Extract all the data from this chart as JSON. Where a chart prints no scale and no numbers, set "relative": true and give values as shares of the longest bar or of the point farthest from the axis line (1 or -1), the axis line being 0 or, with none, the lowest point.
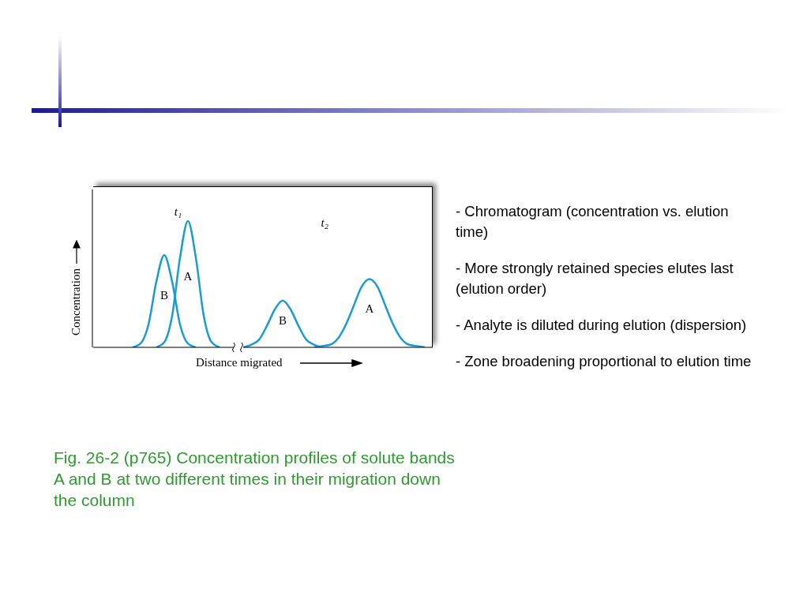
{
  "chart_data": {
    "type": "line",
    "relative": true,
    "xlabel": "Distance migrated",
    "ylabel": "Concentration",
    "categories": [
      null,
      null,
      null,
      null,
      null,
      null,
      null,
      null,
      null,
      null,
      null,
      null,
      null,
      null,
      null,
      null,
      null,
      null,
      null,
      null,
      null,
      null,
      null,
      null,
      null,
      null,
      null,
      null,
      null,
      null,
      null,
      null,
      null,
      null,
      null,
      null,
      null,
      null,
      null,
      null,
      null,
      null,
      null,
      null
    ],
    "series": [
      {
        "name": "B",
        "color": "#1a9ad6",
        "values": [
          null,
          null,
          null,
          null,
          null,
          0,
          0.03,
          0.18,
          0.52,
          0.73,
          0.52,
          0.18,
          0.03,
          0,
          null,
          null,
          null,
          null,
          null,
          null,
          null,
          null,
          null,
          null,
          null,
          null,
          null,
          null,
          null,
          null,
          null,
          null,
          null,
          null,
          null,
          null,
          null,
          null,
          null,
          null,
          null,
          null,
          null,
          null
        ]
      },
      {
        "name": "A",
        "color": "#1a9ad6",
        "values": [
          null,
          null,
          null,
          null,
          null,
          null,
          null,
          null,
          0,
          0.04,
          0.25,
          0.71,
          1,
          0.71,
          0.25,
          0.04,
          0,
          null,
          null,
          null,
          null,
          null,
          null,
          null,
          null,
          null,
          null,
          null,
          null,
          null,
          null,
          null,
          null,
          null,
          null,
          null,
          null,
          null,
          null,
          null,
          null,
          null,
          null,
          null
        ]
      },
      {
        "name": "B",
        "color": "#1a9ad6",
        "values": [
          null,
          null,
          null,
          null,
          null,
          null,
          null,
          null,
          null,
          null,
          null,
          null,
          null,
          null,
          null,
          null,
          null,
          null,
          null,
          0,
          0.02,
          0.06,
          0.17,
          0.3,
          0.37,
          0.3,
          0.17,
          0.06,
          0.02,
          0,
          null,
          null,
          null,
          null,
          null,
          null,
          null,
          null,
          null,
          null,
          null,
          null,
          null,
          null
        ]
      },
      {
        "name": "A",
        "color": "#1a9ad6",
        "values": [
          null,
          null,
          null,
          null,
          null,
          null,
          null,
          null,
          null,
          null,
          null,
          null,
          null,
          null,
          null,
          null,
          null,
          null,
          null,
          null,
          null,
          null,
          null,
          null,
          null,
          null,
          null,
          null,
          0,
          0.01,
          0.02,
          0.07,
          0.18,
          0.33,
          0.48,
          0.54,
          0.48,
          0.33,
          0.18,
          0.07,
          0.02,
          0.01,
          0,
          null
        ]
      }
    ],
    "annotations": [
      "t₁",
      "t₂",
      "- Chromatogram (concentration vs. elution time)",
      "- More strongly retained species elutes last (elution order)",
      "- Analyte is diluted during elution (dispersion)",
      "- Zone broadening proportional to elution time",
      "Fig. 26-2 (p765)  Concentration profiles of solute bands A and B at two different times in their migration down the column"
    ]
  }
}
